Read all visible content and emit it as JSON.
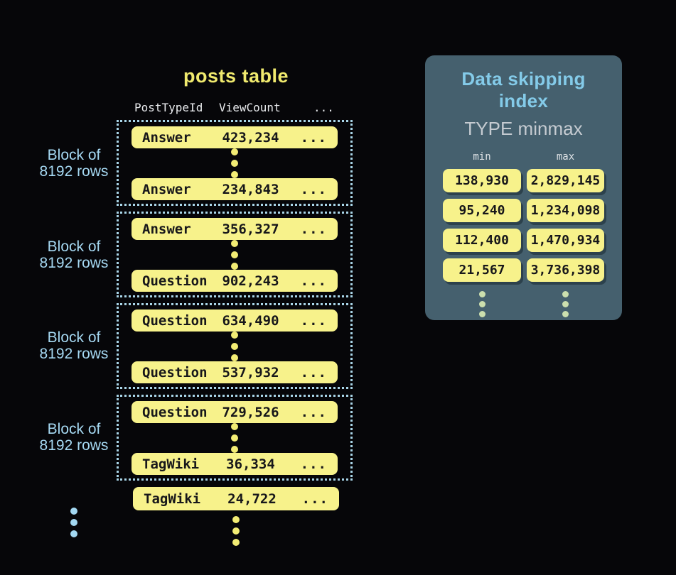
{
  "posts_table": {
    "title": "posts table",
    "columns": {
      "col1": "PostTypeId",
      "col2": "ViewCount",
      "col3": "..."
    },
    "block_label": {
      "line1": "Block of",
      "line2": "8192 rows"
    },
    "blocks": [
      {
        "first": {
          "type": "Answer",
          "views": "423,234",
          "more": "..."
        },
        "last": {
          "type": "Answer",
          "views": "234,843",
          "more": "..."
        }
      },
      {
        "first": {
          "type": "Answer",
          "views": "356,327",
          "more": "..."
        },
        "last": {
          "type": "Question",
          "views": "902,243",
          "more": "..."
        }
      },
      {
        "first": {
          "type": "Question",
          "views": "634,490",
          "more": "..."
        },
        "last": {
          "type": "Question",
          "views": "537,932",
          "more": "..."
        }
      },
      {
        "first": {
          "type": "Question",
          "views": "729,526",
          "more": "..."
        },
        "last": {
          "type": "TagWiki",
          "views": "36,334",
          "more": "..."
        }
      }
    ],
    "tail_row": {
      "type": "TagWiki",
      "views": "24,722",
      "more": "..."
    }
  },
  "skipping_index": {
    "title": "Data skipping index",
    "subtitle": "TYPE minmax",
    "min_label": "min",
    "max_label": "max",
    "entries": [
      {
        "min": "138,930",
        "max": "2,829,145"
      },
      {
        "min": "95,240",
        "max": "1,234,098"
      },
      {
        "min": "112,400",
        "max": "1,470,934"
      },
      {
        "min": "21,567",
        "max": "3,736,398"
      }
    ]
  },
  "colors": {
    "background": "#060609",
    "row_yellow": "#f7f28b",
    "title_yellow": "#f0ea6e",
    "block_border_blue": "#a9d5e8",
    "label_blue": "#a6d9f3",
    "panel_bg": "#45606e",
    "panel_title_blue": "#84cbe9",
    "panel_subtitle_gray": "#c5cbd1",
    "pale_green_dots": "#ccdfae"
  }
}
